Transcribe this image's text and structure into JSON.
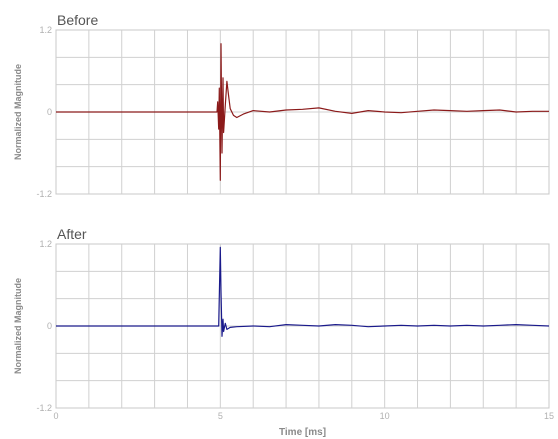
{
  "chart_data": [
    {
      "type": "line",
      "title": "Before",
      "xlabel": "",
      "ylabel": "Normalized Magnitude",
      "xlim": [
        0,
        15
      ],
      "ylim": [
        -1.2,
        1.2
      ],
      "xticks": [],
      "yticks": [
        "1.2",
        "0",
        "-1.2"
      ],
      "grid": true,
      "color": "#8b1a1a",
      "series": [
        {
          "x": [
            0,
            4.5,
            4.9,
            4.92,
            4.95,
            4.97,
            5.0,
            5.02,
            5.05,
            5.08,
            5.1,
            5.15,
            5.2,
            5.25,
            5.3,
            5.4,
            5.5,
            5.7,
            6.0,
            6.5,
            7.0,
            7.5,
            8.0,
            8.5,
            9.0,
            9.5,
            10.0,
            10.5,
            11.0,
            11.5,
            12.0,
            12.5,
            13.0,
            13.5,
            14.0,
            14.5,
            15.0
          ],
          "y": [
            0,
            0,
            0,
            0.15,
            -0.25,
            0.35,
            -1.0,
            1.0,
            -0.6,
            0.5,
            -0.3,
            0.1,
            0.45,
            0.25,
            0.05,
            -0.05,
            -0.08,
            -0.03,
            0.02,
            0.0,
            0.03,
            0.04,
            0.06,
            0.01,
            -0.02,
            0.02,
            0.0,
            -0.01,
            0.01,
            0.03,
            0.02,
            0.01,
            0.02,
            0.03,
            0.0,
            0.01,
            0.01
          ]
        }
      ]
    },
    {
      "type": "line",
      "title": "After",
      "xlabel": "Time [ms]",
      "ylabel": "Normalized Magnitude",
      "xlim": [
        0,
        15
      ],
      "ylim": [
        -1.2,
        1.2
      ],
      "xticks": [
        "0",
        "5",
        "10",
        "15"
      ],
      "yticks": [
        "1.2",
        "0",
        "-1.2"
      ],
      "grid": true,
      "color": "#1a1a8b",
      "series": [
        {
          "x": [
            0,
            4.9,
            4.95,
            5.0,
            5.02,
            5.05,
            5.08,
            5.1,
            5.15,
            5.2,
            5.3,
            5.5,
            6.0,
            6.5,
            7.0,
            7.5,
            8.0,
            8.5,
            9.0,
            9.5,
            10.0,
            10.5,
            11.0,
            11.5,
            12.0,
            12.5,
            13.0,
            13.5,
            14.0,
            14.5,
            15.0
          ],
          "y": [
            0,
            0,
            0,
            1.15,
            0.5,
            -0.15,
            0.1,
            -0.08,
            0.04,
            -0.05,
            -0.02,
            -0.01,
            0.0,
            -0.01,
            0.02,
            0.01,
            0.0,
            0.02,
            0.01,
            -0.01,
            0.0,
            0.01,
            0.0,
            0.01,
            0.0,
            0.01,
            0.0,
            0.01,
            0.02,
            0.01,
            0.0
          ]
        }
      ]
    }
  ]
}
